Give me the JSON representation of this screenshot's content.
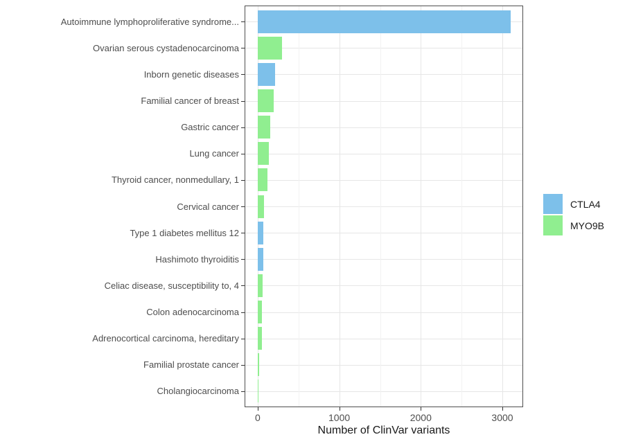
{
  "chart_data": {
    "type": "bar",
    "orientation": "horizontal",
    "title": "",
    "xlabel": "Number of ClinVar variants",
    "ylabel": "",
    "x_domain": [
      -152,
      3246
    ],
    "x_major_ticks": [
      0,
      1000,
      2000,
      3000
    ],
    "x_minor_ticks": [
      500,
      1500,
      2500
    ],
    "grid": true,
    "legend_position": "right",
    "legend_entries": [
      "CTLA4",
      "MYO9B"
    ],
    "series_colors": {
      "CTLA4": "#7dc0ea",
      "MYO9B": "#90ee90"
    },
    "bars": [
      {
        "category": "Autoimmune lymphoproliferative syndrome...",
        "series": "CTLA4",
        "value": 3100
      },
      {
        "category": "Ovarian serous cystadenocarcinoma",
        "series": "MYO9B",
        "value": 300
      },
      {
        "category": "Inborn genetic diseases",
        "series": "CTLA4",
        "value": 210
      },
      {
        "category": "Familial cancer of breast",
        "series": "MYO9B",
        "value": 200
      },
      {
        "category": "Gastric cancer",
        "series": "MYO9B",
        "value": 150
      },
      {
        "category": "Lung cancer",
        "series": "MYO9B",
        "value": 140
      },
      {
        "category": "Thyroid cancer, nonmedullary, 1",
        "series": "MYO9B",
        "value": 122
      },
      {
        "category": "Cervical cancer",
        "series": "MYO9B",
        "value": 76
      },
      {
        "category": "Type 1 diabetes mellitus 12",
        "series": "CTLA4",
        "value": 70
      },
      {
        "category": "Hashimoto thyroiditis",
        "series": "CTLA4",
        "value": 68
      },
      {
        "category": "Celiac disease, susceptibility to, 4",
        "series": "MYO9B",
        "value": 60
      },
      {
        "category": "Colon adenocarcinoma",
        "series": "MYO9B",
        "value": 50
      },
      {
        "category": "Adrenocortical carcinoma, hereditary",
        "series": "MYO9B",
        "value": 48
      },
      {
        "category": "Familial prostate cancer",
        "series": "MYO9B",
        "value": 16
      },
      {
        "category": "Cholangiocarcinoma",
        "series": "MYO9B",
        "value": 13
      }
    ],
    "colors": {
      "panel_border": "#4d4d4d",
      "grid_major": "#e6e6e6",
      "grid_minor": "#f2f2f2",
      "axis_text": "#4d4d4d",
      "axis_title": "#1a1a1a",
      "tick_mark": "#333333"
    }
  }
}
